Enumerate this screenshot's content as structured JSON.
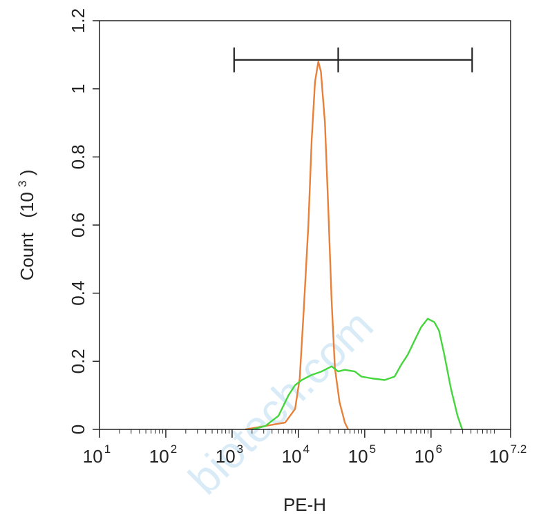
{
  "chart_data": {
    "type": "line",
    "title": "",
    "xlabel": "PE-H",
    "ylabel": "Count",
    "ylabel_unit_base": "(10",
    "ylabel_unit_exp": "3",
    "ylabel_unit_close": ")",
    "xscale": "log10",
    "xlim_log10": [
      1,
      7.2
    ],
    "ylim": [
      0,
      1.2
    ],
    "x_ticks": [
      {
        "base": "10",
        "exp": "1",
        "log10": 1
      },
      {
        "base": "10",
        "exp": "2",
        "log10": 2
      },
      {
        "base": "10",
        "exp": "3",
        "log10": 3
      },
      {
        "base": "10",
        "exp": "4",
        "log10": 4
      },
      {
        "base": "10",
        "exp": "5",
        "log10": 5
      },
      {
        "base": "10",
        "exp": "6",
        "log10": 6
      },
      {
        "base": "10",
        "exp": "7.2",
        "log10": 7.2
      }
    ],
    "y_ticks": [
      {
        "label": "0",
        "value": 0
      },
      {
        "label": "0.2",
        "value": 0.2
      },
      {
        "label": "0.4",
        "value": 0.4
      },
      {
        "label": "0.6",
        "value": 0.6
      },
      {
        "label": "0.8",
        "value": 0.8
      },
      {
        "label": "1",
        "value": 1
      },
      {
        "label": "1.2",
        "value": 1.2
      }
    ],
    "grid": false,
    "legend": "none",
    "gate": {
      "log10_start": 3.03,
      "log10_mid": 4.6,
      "log10_end": 6.62,
      "y": 1.085
    },
    "series": [
      {
        "color": "#e8803a",
        "points": [
          [
            3.2,
            0
          ],
          [
            3.5,
            0.01
          ],
          [
            3.8,
            0.02
          ],
          [
            3.95,
            0.06
          ],
          [
            4.02,
            0.15
          ],
          [
            4.08,
            0.35
          ],
          [
            4.15,
            0.6
          ],
          [
            4.2,
            0.85
          ],
          [
            4.25,
            1.02
          ],
          [
            4.3,
            1.08
          ],
          [
            4.34,
            1.05
          ],
          [
            4.4,
            0.9
          ],
          [
            4.45,
            0.65
          ],
          [
            4.5,
            0.38
          ],
          [
            4.55,
            0.18
          ],
          [
            4.62,
            0.08
          ],
          [
            4.7,
            0.02
          ],
          [
            4.75,
            0
          ]
        ]
      },
      {
        "color": "#44d63c",
        "points": [
          [
            3.3,
            0
          ],
          [
            3.5,
            0.01
          ],
          [
            3.7,
            0.04
          ],
          [
            3.85,
            0.1
          ],
          [
            3.95,
            0.13
          ],
          [
            4.05,
            0.145
          ],
          [
            4.2,
            0.16
          ],
          [
            4.35,
            0.17
          ],
          [
            4.5,
            0.185
          ],
          [
            4.6,
            0.17
          ],
          [
            4.7,
            0.175
          ],
          [
            4.85,
            0.17
          ],
          [
            4.95,
            0.155
          ],
          [
            5.1,
            0.15
          ],
          [
            5.3,
            0.145
          ],
          [
            5.45,
            0.155
          ],
          [
            5.55,
            0.19
          ],
          [
            5.65,
            0.22
          ],
          [
            5.75,
            0.26
          ],
          [
            5.85,
            0.3
          ],
          [
            5.95,
            0.325
          ],
          [
            6.05,
            0.315
          ],
          [
            6.12,
            0.29
          ],
          [
            6.2,
            0.22
          ],
          [
            6.3,
            0.12
          ],
          [
            6.4,
            0.04
          ],
          [
            6.47,
            0
          ]
        ]
      }
    ],
    "annotations": {
      "watermark_text": "biotech.com"
    }
  }
}
